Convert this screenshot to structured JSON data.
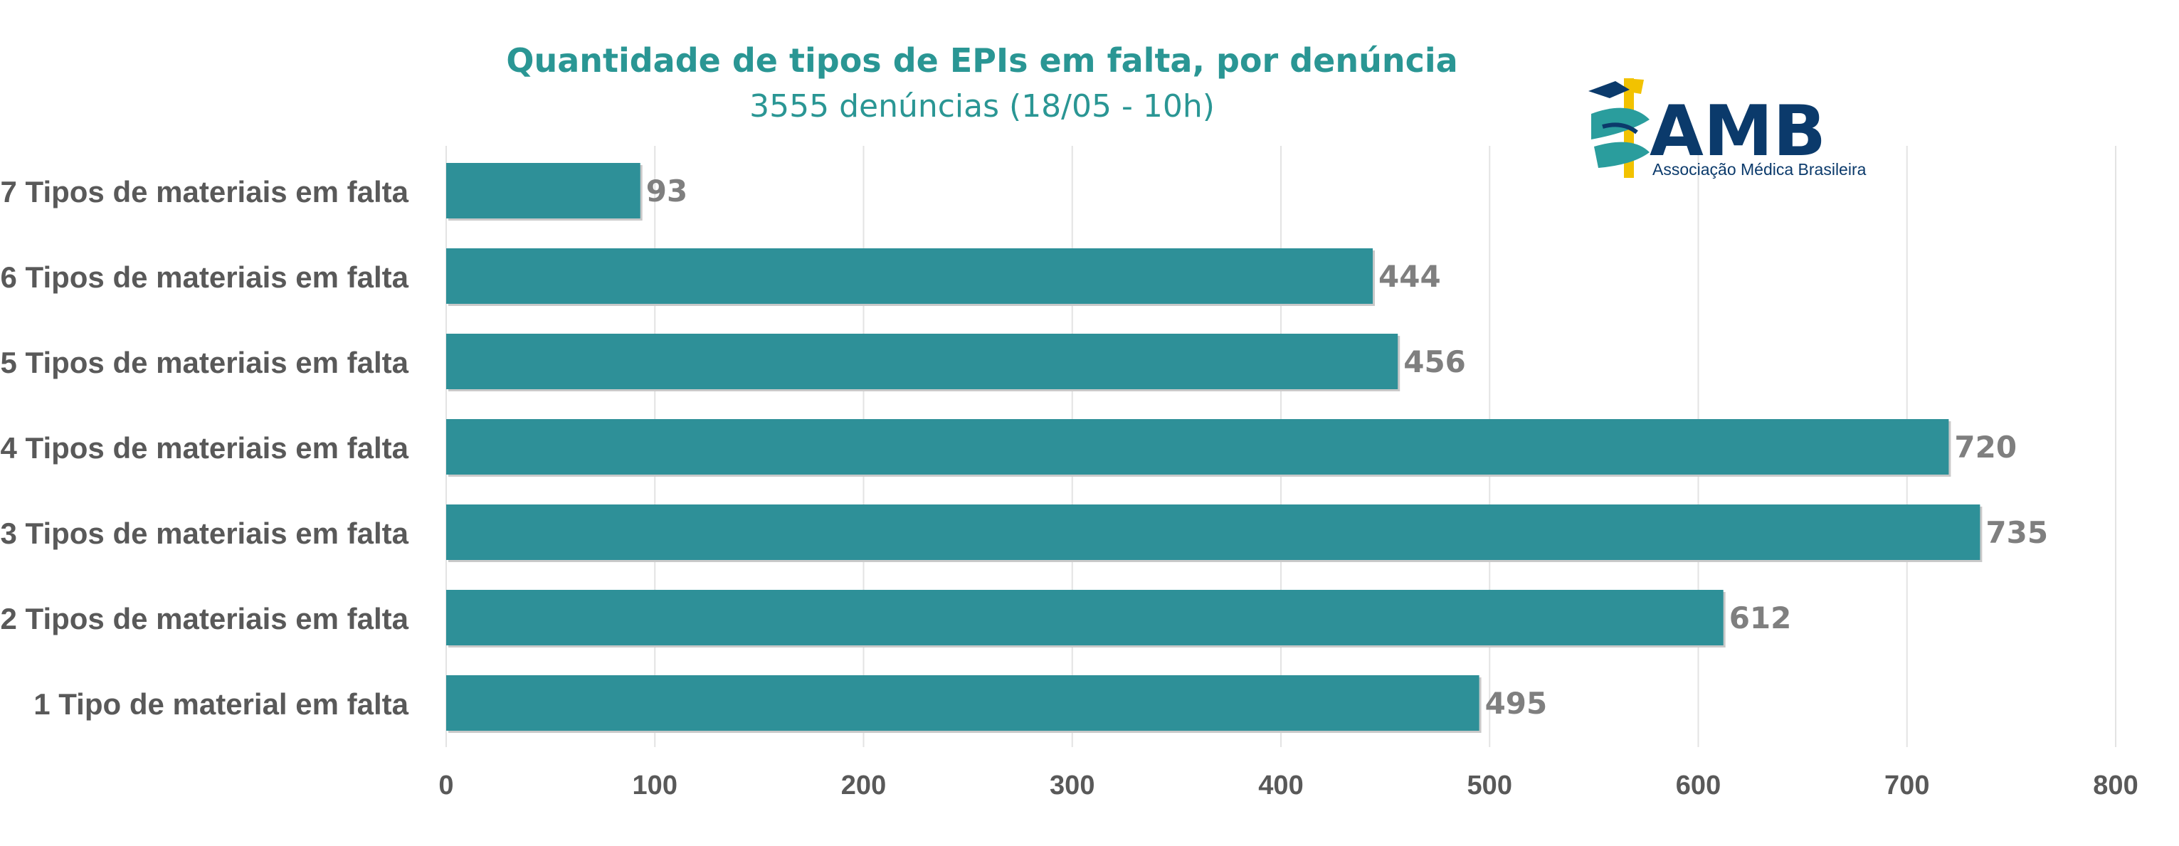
{
  "colors": {
    "bar": "#2e9098",
    "title": "#2a9694",
    "label": "#595959",
    "value": "#7f7f7f",
    "grid": "#e3e3e3",
    "logo_blue": "#0b3a6b",
    "logo_yellow": "#f2c200",
    "logo_teal": "#2a9d9d"
  },
  "logo": {
    "name": "AMB",
    "tagline": "Associação Médica Brasileira"
  },
  "chart_data": {
    "type": "bar",
    "orientation": "horizontal",
    "title": "Quantidade de tipos de EPIs em falta, por denúncia",
    "subtitle": "3555 denúncias (18/05 - 10h)",
    "categories": [
      "7 Tipos de materiais em falta",
      "6 Tipos de materiais em falta",
      "5 Tipos de materiais em falta",
      "4 Tipos de materiais em falta",
      "3 Tipos de materiais em falta",
      "2 Tipos de materiais em falta",
      "1 Tipo de material em falta"
    ],
    "values": [
      93,
      444,
      456,
      720,
      735,
      612,
      495
    ],
    "xlim": [
      0,
      800
    ],
    "xticks": [
      0,
      100,
      200,
      300,
      400,
      500,
      600,
      700,
      800
    ],
    "grid": "vertical",
    "legend": "none"
  }
}
